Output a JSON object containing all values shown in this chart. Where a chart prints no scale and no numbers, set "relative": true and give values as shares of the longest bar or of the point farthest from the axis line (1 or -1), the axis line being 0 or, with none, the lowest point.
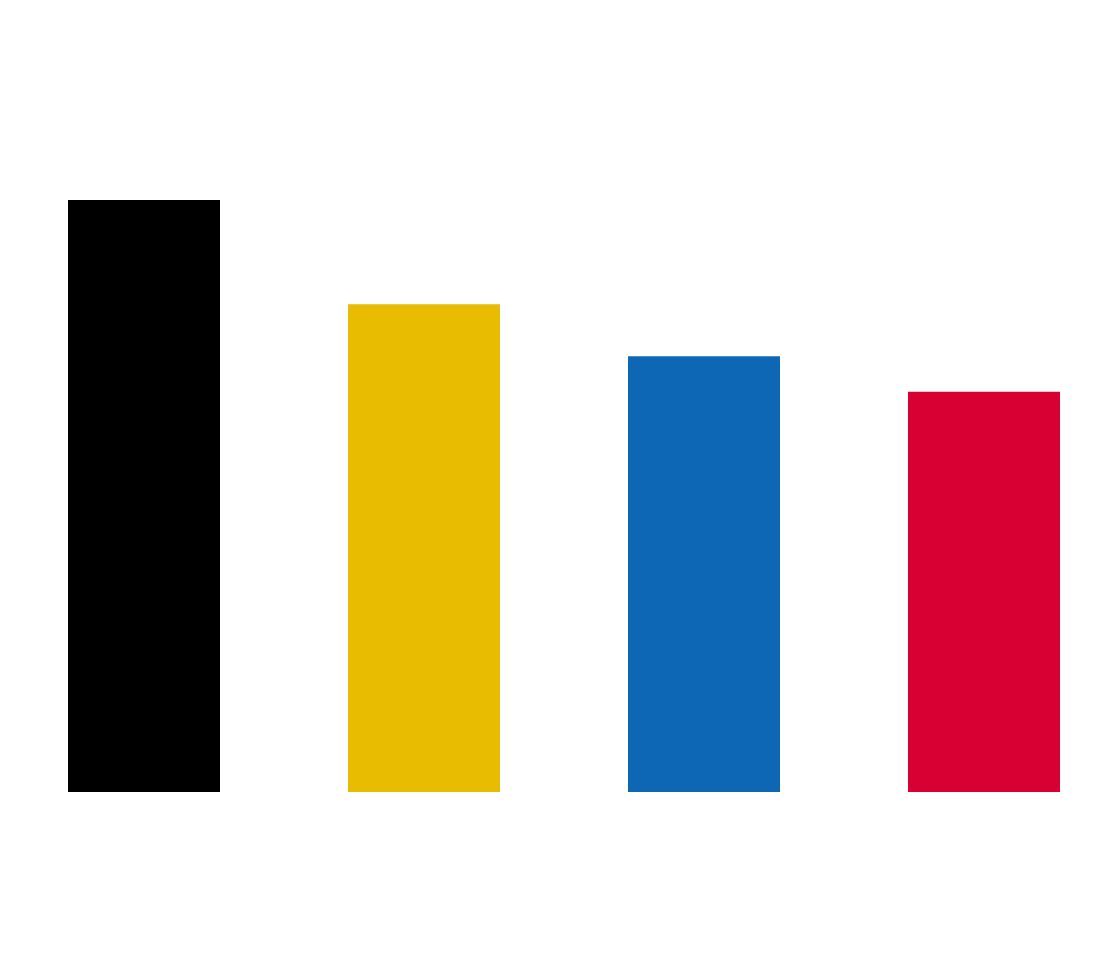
{
  "chart_data": {
    "type": "bar",
    "relative": true,
    "categories": [
      null,
      null,
      null,
      null
    ],
    "values": [
      1,
      0.824,
      0.736,
      0.676
    ],
    "colors": [
      "#000000",
      "#e8bc00",
      "#0e67b5",
      "#d80032"
    ]
  }
}
